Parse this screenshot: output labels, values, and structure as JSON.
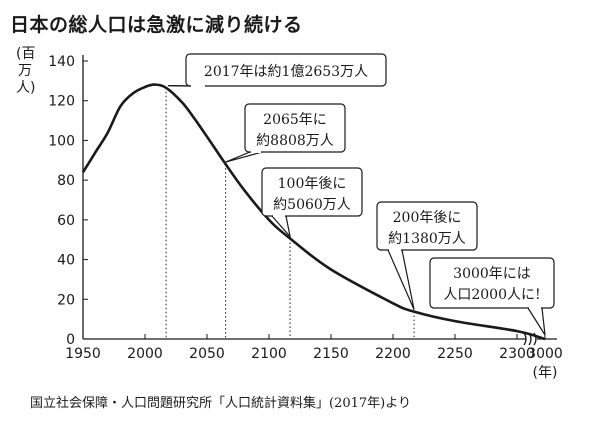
{
  "title": "日本の総人口は急激に減り続ける",
  "source": "国立社会保障・人口問題研究所「人口統計資料集」(2017年)より",
  "chart_data": {
    "type": "line",
    "title": "日本の総人口は急激に減り続ける",
    "ylabel": "(百万人)",
    "xlabel": "(年)",
    "ylim": [
      0,
      140
    ],
    "grid": false,
    "x_ticks": [
      "1950",
      "2000",
      "2050",
      "2100",
      "2150",
      "2200",
      "2250",
      "2300",
      "3000"
    ],
    "y_ticks": [
      "0",
      "20",
      "40",
      "60",
      "80",
      "100",
      "120",
      "140"
    ],
    "axis_break": "between 2300 and 3000",
    "series": [
      {
        "values": [
          {
            "x": 1950,
            "y": 84
          },
          {
            "x": 1960,
            "y": 94
          },
          {
            "x": 1970,
            "y": 104
          },
          {
            "x": 1980,
            "y": 117
          },
          {
            "x": 1990,
            "y": 123.6
          },
          {
            "x": 2000,
            "y": 126.9
          },
          {
            "x": 2008,
            "y": 128.1
          },
          {
            "x": 2017,
            "y": 126.5
          },
          {
            "x": 2030,
            "y": 119.1
          },
          {
            "x": 2040,
            "y": 110.9
          },
          {
            "x": 2050,
            "y": 101.9
          },
          {
            "x": 2065,
            "y": 88.1
          },
          {
            "x": 2080,
            "y": 75
          },
          {
            "x": 2100,
            "y": 60
          },
          {
            "x": 2117,
            "y": 50.6
          },
          {
            "x": 2150,
            "y": 35
          },
          {
            "x": 2200,
            "y": 18
          },
          {
            "x": 2217,
            "y": 13.8
          },
          {
            "x": 2250,
            "y": 9
          },
          {
            "x": 2300,
            "y": 4
          },
          {
            "x": 3000,
            "y": 0.002
          }
        ]
      }
    ],
    "annotations": [
      {
        "x": 2017,
        "y": 126.53,
        "lines": [
          "2017年は約1億2653万人"
        ]
      },
      {
        "x": 2065,
        "y": 88.08,
        "lines": [
          "2065年に",
          "約8808万人"
        ]
      },
      {
        "x": 2117,
        "y": 50.6,
        "lines": [
          "100年後に",
          "約5060万人"
        ]
      },
      {
        "x": 2217,
        "y": 13.8,
        "lines": [
          "200年後に",
          "約1380万人"
        ]
      },
      {
        "x": 3000,
        "y": 0.002,
        "lines": [
          "3000年には",
          "人口2000人に!"
        ]
      }
    ]
  }
}
